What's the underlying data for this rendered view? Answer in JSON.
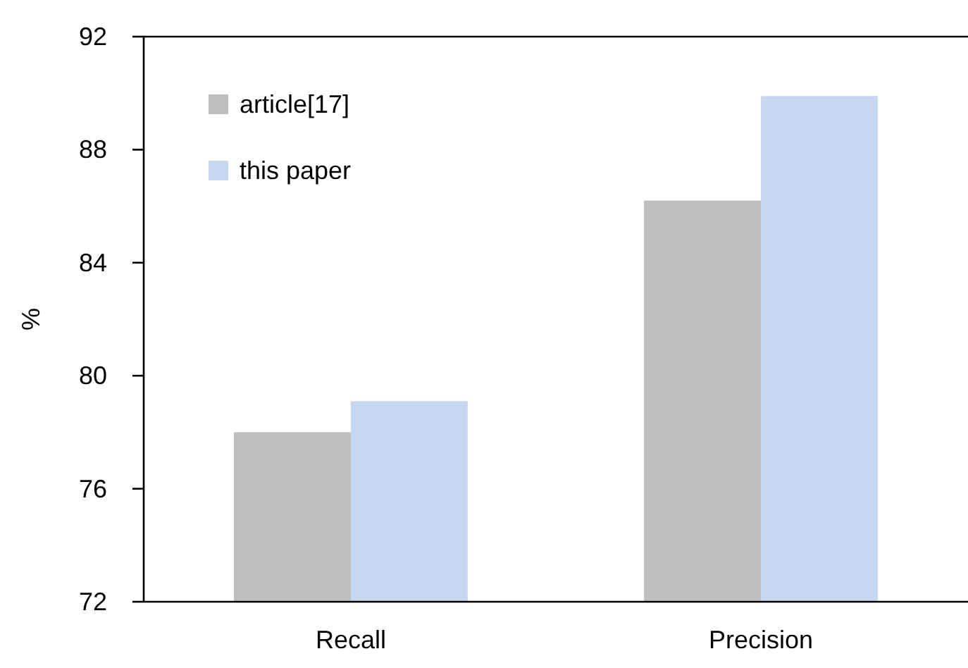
{
  "chart_data": {
    "type": "bar",
    "ylabel": "%",
    "categories": [
      "Recall",
      "Precision"
    ],
    "series": [
      {
        "name": "article[17]",
        "color": "#bfbfbf",
        "values": [
          78.0,
          86.2
        ]
      },
      {
        "name": "this paper",
        "color": "#c6d8ef",
        "values": [
          79.1,
          89.9
        ]
      }
    ],
    "ylim": [
      72,
      92
    ],
    "yticks": [
      72,
      76,
      80,
      84,
      88,
      92
    ],
    "grid": false,
    "legend": "top left"
  }
}
